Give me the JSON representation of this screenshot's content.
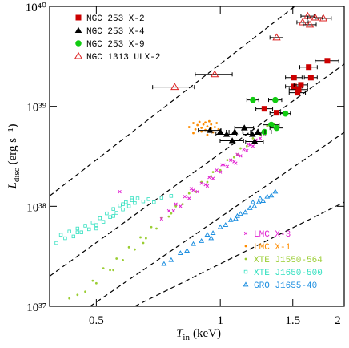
{
  "chart_data": {
    "type": "scatter",
    "xlabel": {
      "symbol": "T",
      "subscript": "in",
      "unit": "(keV)"
    },
    "ylabel": {
      "symbol": "L",
      "subscript": "disc",
      "unit": "(erg s⁻¹)"
    },
    "xscale": "log",
    "yscale": "log",
    "xlim": [
      0.385,
      2
    ],
    "ylim": [
      1e+37,
      1e+40
    ],
    "xticks": [
      0.5,
      1,
      1.5,
      2
    ],
    "yticks": [
      {
        "value": 1e+37,
        "label": "10³⁷"
      },
      {
        "value": 1e+38,
        "label": "10³⁸"
      },
      {
        "value": 1e+39,
        "label": "10³⁹"
      },
      {
        "value": 1e+40,
        "label": "10⁴⁰"
      }
    ],
    "reference_lines": [
      {
        "x": [
          0.385,
          1.516
        ],
        "y": [
          1.27e+38,
          1e+40
        ]
      },
      {
        "x": [
          0.385,
          2
        ],
        "y": [
          2e+37,
          2.65e+39
        ]
      },
      {
        "x": [
          0.483,
          2
        ],
        "y": [
          1e+37,
          5.5e+38
        ]
      },
      {
        "x": [
          0.62,
          2
        ],
        "y": [
          1e+37,
          1.1e+38
        ]
      }
    ],
    "series": [
      {
        "name": "NGC 253 X-2",
        "color": "#cc0000",
        "label_color": "#000000",
        "marker": "square",
        "legend": "upper left",
        "x": [
          1.82,
          1.64,
          1.51,
          1.66,
          1.51,
          1.57,
          1.55,
          1.54,
          1.28,
          1.37
        ],
        "values": [
          2.86e+39,
          2.47e+39,
          1.94e+39,
          1.94e+39,
          1.58e+39,
          1.64e+39,
          1.47e+39,
          1.37e+39,
          9.46e+38,
          8.63e+38
        ],
        "xerr": [
          0.12,
          0.08,
          0.07,
          0.06,
          0.07,
          0.06,
          0.08,
          0.07,
          0.06,
          0.05
        ]
      },
      {
        "name": "NGC 253 X-4",
        "color": "#000000",
        "label_color": "#000000",
        "marker": "triangle",
        "legend": "upper left",
        "x": [
          0.944,
          1.0,
          1.036,
          1.084,
          1.144,
          1.196,
          1.234,
          1.069,
          1.212
        ],
        "values": [
          5.75e+38,
          5.55e+38,
          5.25e+38,
          5.55e+38,
          6.08e+38,
          5.25e+38,
          5.55e+38,
          4.53e+38,
          4.45e+38
        ],
        "xerr": [
          0.06,
          0.05,
          0.06,
          0.05,
          0.06,
          0.06,
          0.05,
          0.07,
          0.06
        ]
      },
      {
        "name": "NGC 253 X-9",
        "color": "#11cc11",
        "label_color": "#000000",
        "marker": "circle",
        "legend": "upper left",
        "x": [
          1.2,
          1.36,
          1.44,
          1.33,
          1.37,
          1.28
        ],
        "values": [
          1.16e+39,
          1.16e+39,
          8.47e+38,
          6.55e+38,
          6.08e+38,
          5.55e+38
        ],
        "xerr": [
          0.04,
          0.05,
          0.04,
          0.06,
          0.05,
          0.05
        ]
      },
      {
        "name": "NGC 1313 ULX-2",
        "color": "#dd2222",
        "label_color": "#000000",
        "marker": "open-triangle",
        "legend": "upper left",
        "x": [
          1.63,
          1.7,
          1.78,
          1.585,
          1.65,
          1.37,
          0.969,
          0.775
        ],
        "values": [
          8e+39,
          7.73e+39,
          7.59e+39,
          6.92e+39,
          6.55e+39,
          4.88e+39,
          2.09e+39,
          1.56e+39
        ],
        "xerr": [
          0.06,
          0.07,
          0.08,
          0.05,
          0.06,
          0.05,
          0.1,
          0.09
        ]
      },
      {
        "name": "LMC X-3",
        "color": "#e020d0",
        "label_color": "#e020d0",
        "marker": "x",
        "legend": "lower right",
        "x": [
          0.72,
          0.75,
          0.78,
          0.8,
          0.82,
          0.84,
          0.86,
          0.88,
          0.9,
          0.92,
          0.94,
          0.96,
          0.98,
          1.0,
          1.02,
          1.04,
          1.06,
          1.08,
          1.1,
          1.12,
          1.14,
          1.16,
          1.18,
          1.2,
          1.22,
          1.25,
          1.28,
          0.77,
          0.85,
          0.93,
          1.01,
          1.09,
          1.17,
          0.57
        ],
        "values": [
          7.5e+37,
          9e+37,
          1.05e+38,
          1e+38,
          1.25e+38,
          1.2e+38,
          1.45e+38,
          1.4e+38,
          1.7e+38,
          1.65e+38,
          1.95e+38,
          1.9e+38,
          2.3e+38,
          2.2e+38,
          2.6e+38,
          2.5e+38,
          2.9e+38,
          2.8e+38,
          3.3e+38,
          3.2e+38,
          3.7e+38,
          3.6e+38,
          4.1e+38,
          4e+38,
          4.6e+38,
          4.8e+38,
          5.3e+38,
          9e+37,
          1.5e+38,
          1.6e+38,
          2.6e+38,
          2.7e+38,
          4.2e+38,
          1.4e+38
        ]
      },
      {
        "name": "LMC X-1",
        "color": "#ff8c00",
        "label_color": "#ff8c00",
        "marker": "dot",
        "legend": "lower right",
        "x": [
          0.84,
          0.86,
          0.87,
          0.88,
          0.89,
          0.9,
          0.9,
          0.91,
          0.92,
          0.92,
          0.93,
          0.94,
          0.95,
          0.95,
          0.96,
          0.97,
          0.98,
          0.99,
          0.86,
          0.93
        ],
        "values": [
          6.2e+38,
          6.8e+38,
          5.9e+38,
          6.5e+38,
          7e+38,
          6.1e+38,
          5.6e+38,
          6.6e+38,
          6.9e+38,
          5.8e+38,
          6.3e+38,
          7.1e+38,
          6e+38,
          6.6e+38,
          5.5e+38,
          6.2e+38,
          6.8e+38,
          5.9e+38,
          5.4e+38,
          5.2e+38
        ]
      },
      {
        "name": "XTE J1550-564",
        "color": "#9acd32",
        "label_color": "#9acd32",
        "marker": "dot",
        "legend": "lower right",
        "x": [
          0.43,
          0.45,
          0.47,
          0.49,
          0.5,
          0.52,
          0.54,
          0.56,
          0.58,
          0.6,
          0.62,
          0.64,
          0.66,
          0.68,
          0.7,
          0.72,
          0.75,
          0.78,
          0.81,
          0.84,
          0.87,
          0.9,
          0.93,
          0.96,
          1.0,
          1.04,
          1.08,
          1.12,
          1.16,
          1.2,
          1.25,
          1.3,
          1.35,
          0.55,
          0.65,
          0.76,
          0.95,
          1.1
        ],
        "values": [
          1.2e+37,
          1.3e+37,
          1.4e+37,
          1.8e+37,
          1.7e+37,
          2.4e+37,
          2.3e+37,
          3e+37,
          2.9e+37,
          3.9e+37,
          3.7e+37,
          4.9e+37,
          4.8e+37,
          6.2e+37,
          6e+37,
          7.6e+37,
          7.9e+37,
          1e+38,
          1.05e+38,
          1.35e+38,
          1.4e+38,
          1.75e+38,
          1.75e+38,
          2.2e+38,
          2.3e+38,
          2.9e+38,
          3.1e+38,
          3.8e+38,
          4e+38,
          4.8e+38,
          5.2e+38,
          6.4e+38,
          6.6e+38,
          2.3e+37,
          4.3e+37,
          8.5e+37,
          2e+38,
          3.3e+38
        ]
      },
      {
        "name": "XTE J1650-500",
        "color": "#33e0c0",
        "label_color": "#33e0c0",
        "marker": "open-square",
        "legend": "lower right",
        "x": [
          0.4,
          0.41,
          0.42,
          0.43,
          0.44,
          0.45,
          0.46,
          0.47,
          0.48,
          0.49,
          0.5,
          0.51,
          0.52,
          0.53,
          0.54,
          0.55,
          0.56,
          0.57,
          0.58,
          0.59,
          0.6,
          0.61,
          0.62,
          0.63,
          0.65,
          0.67,
          0.69,
          0.72,
          0.76,
          0.55,
          0.58,
          0.61,
          0.5,
          0.45
        ],
        "values": [
          4.3e+37,
          5.2e+37,
          4.8e+37,
          5.6e+37,
          5e+37,
          6e+37,
          5.5e+37,
          6.4e+37,
          5.9e+37,
          6.9e+37,
          6.5e+37,
          7.6e+37,
          7e+37,
          8.5e+37,
          7.8e+37,
          9.4e+37,
          8.6e+37,
          1.02e+38,
          9.3e+37,
          1.1e+38,
          1e+38,
          1.15e+38,
          1.08e+38,
          1.2e+38,
          1.12e+38,
          1.18e+38,
          1.1e+38,
          1.22e+38,
          1.27e+38,
          8e+37,
          1.05e+38,
          1.2e+38,
          6e+37,
          5.5e+37
        ]
      },
      {
        "name": "GRO J1655-40",
        "color": "#1e8fe0",
        "label_color": "#1e8fe0",
        "marker": "open-triangle",
        "legend": "lower right",
        "x": [
          0.73,
          0.76,
          0.8,
          0.83,
          0.86,
          0.9,
          0.93,
          0.96,
          1.0,
          1.03,
          1.06,
          1.09,
          1.12,
          1.15,
          1.18,
          1.21,
          1.24,
          1.27,
          1.3,
          1.33,
          1.36,
          1.2,
          1.25,
          0.95,
          1.1
        ],
        "values": [
          2.65e+37,
          2.9e+37,
          3.4e+37,
          3.6e+37,
          4.2e+37,
          4.5e+37,
          5.2e+37,
          5.4e+37,
          6.2e+37,
          6.5e+37,
          7.3e+37,
          7.5e+37,
          8.4e+37,
          8.7e+37,
          9.6e+37,
          1e+38,
          1.1e+38,
          1.13e+38,
          1.25e+38,
          1.28e+38,
          1.4e+38,
          1.1e+38,
          1.2e+38,
          4.8e+37,
          8e+37
        ]
      }
    ]
  }
}
